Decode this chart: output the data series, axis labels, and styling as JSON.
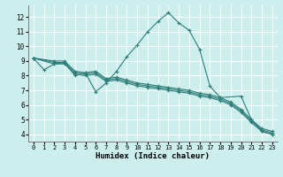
{
  "xlabel": "Humidex (Indice chaleur)",
  "background_color": "#cceeed",
  "grid_color": "#ffffff",
  "line_color": "#2d7d78",
  "xlim": [
    -0.5,
    23.5
  ],
  "ylim": [
    3.5,
    12.8
  ],
  "yticks": [
    4,
    5,
    6,
    7,
    8,
    9,
    10,
    11,
    12
  ],
  "xticks": [
    0,
    1,
    2,
    3,
    4,
    5,
    6,
    7,
    8,
    9,
    10,
    11,
    12,
    13,
    14,
    15,
    16,
    17,
    18,
    19,
    20,
    21,
    22,
    23
  ],
  "series": [
    {
      "x": [
        0,
        1,
        2,
        3,
        4,
        5,
        6,
        7,
        8,
        9,
        10,
        11,
        12,
        13,
        14,
        15,
        16,
        17,
        18,
        20,
        21,
        22,
        23
      ],
      "y": [
        9.2,
        8.4,
        8.8,
        8.9,
        8.0,
        8.2,
        6.9,
        7.5,
        8.3,
        9.3,
        10.1,
        11.0,
        11.7,
        12.3,
        11.6,
        11.1,
        9.8,
        7.3,
        6.5,
        6.6,
        5.0,
        4.2,
        4.0
      ]
    },
    {
      "x": [
        0,
        2,
        3,
        4,
        5,
        6,
        7,
        8,
        9,
        10,
        11,
        12,
        13,
        14,
        15,
        16,
        17,
        18,
        19,
        20,
        21,
        22,
        23
      ],
      "y": [
        9.2,
        8.8,
        8.8,
        8.1,
        8.0,
        8.1,
        7.6,
        7.7,
        7.5,
        7.3,
        7.2,
        7.1,
        7.0,
        6.9,
        6.8,
        6.6,
        6.5,
        6.3,
        6.0,
        5.5,
        4.8,
        4.2,
        4.0
      ]
    },
    {
      "x": [
        0,
        2,
        3,
        4,
        5,
        6,
        7,
        8,
        9,
        10,
        11,
        12,
        13,
        14,
        15,
        16,
        17,
        18,
        19,
        20,
        21,
        22,
        23
      ],
      "y": [
        9.2,
        8.9,
        8.9,
        8.2,
        8.1,
        8.2,
        7.7,
        7.8,
        7.6,
        7.4,
        7.3,
        7.2,
        7.1,
        7.0,
        6.9,
        6.7,
        6.6,
        6.4,
        6.1,
        5.6,
        4.9,
        4.3,
        4.1
      ]
    },
    {
      "x": [
        0,
        2,
        3,
        4,
        5,
        6,
        7,
        8,
        9,
        10,
        11,
        12,
        13,
        14,
        15,
        16,
        17,
        18,
        19,
        20,
        21,
        22,
        23
      ],
      "y": [
        9.2,
        9.0,
        9.0,
        8.3,
        8.2,
        8.3,
        7.8,
        7.9,
        7.7,
        7.5,
        7.4,
        7.3,
        7.2,
        7.1,
        7.0,
        6.8,
        6.7,
        6.5,
        6.2,
        5.7,
        5.0,
        4.4,
        4.2
      ]
    }
  ]
}
